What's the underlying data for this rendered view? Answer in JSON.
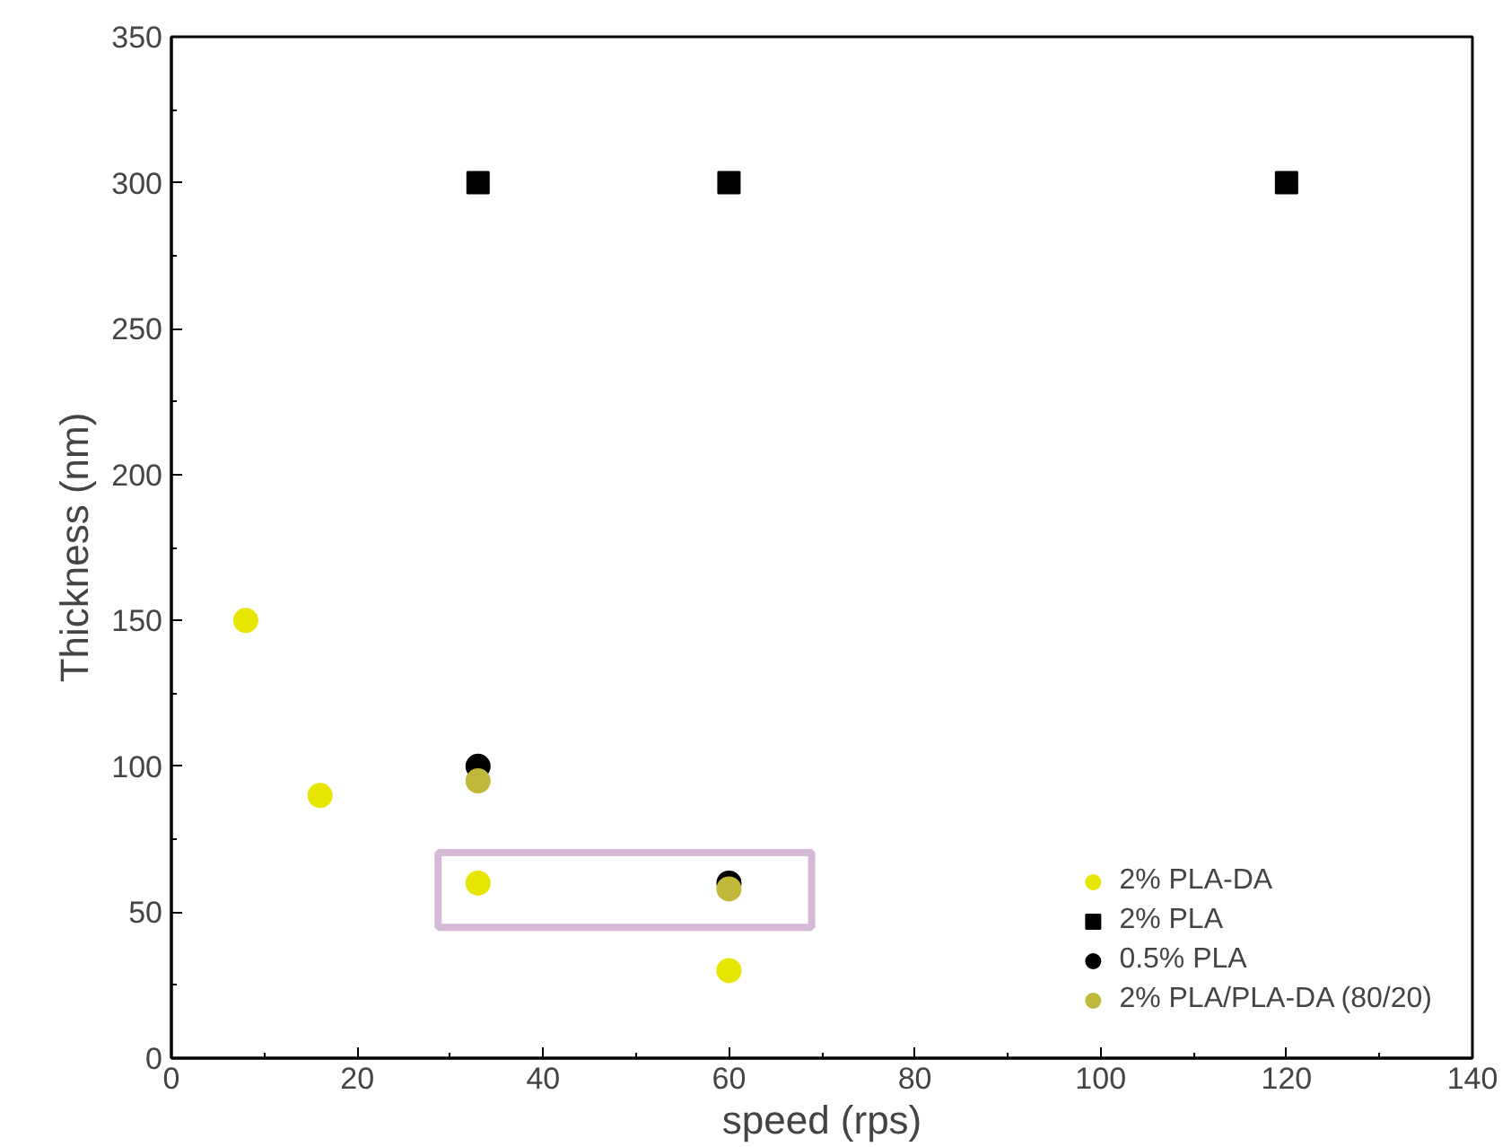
{
  "chart_data": {
    "type": "scatter",
    "xlabel": "speed (rps)",
    "ylabel": "Thickness (nm)",
    "xlim": [
      0,
      140
    ],
    "ylim": [
      0,
      350
    ],
    "xticks": [
      0,
      20,
      40,
      60,
      80,
      100,
      120,
      140
    ],
    "yticks": [
      0,
      50,
      100,
      150,
      200,
      250,
      300,
      350
    ],
    "grid": false,
    "legend": "bottom right",
    "series": [
      {
        "name": "2% PLA-DA",
        "color": "#e6e600",
        "marker": "circle",
        "x": [
          8,
          16,
          33,
          60
        ],
        "values": [
          150,
          90,
          60,
          30
        ]
      },
      {
        "name": "2% PLA",
        "color": "#000000",
        "marker": "square",
        "x": [
          33,
          60,
          120
        ],
        "values": [
          300,
          300,
          300
        ]
      },
      {
        "name": "0.5% PLA",
        "color": "#000000",
        "marker": "circle",
        "x": [
          33,
          60
        ],
        "values": [
          100,
          60
        ]
      },
      {
        "name": "2% PLA/PLA-DA (80/20)",
        "color": "#c0b83a",
        "marker": "circle",
        "x": [
          33,
          60
        ],
        "values": [
          95,
          58
        ]
      }
    ]
  }
}
